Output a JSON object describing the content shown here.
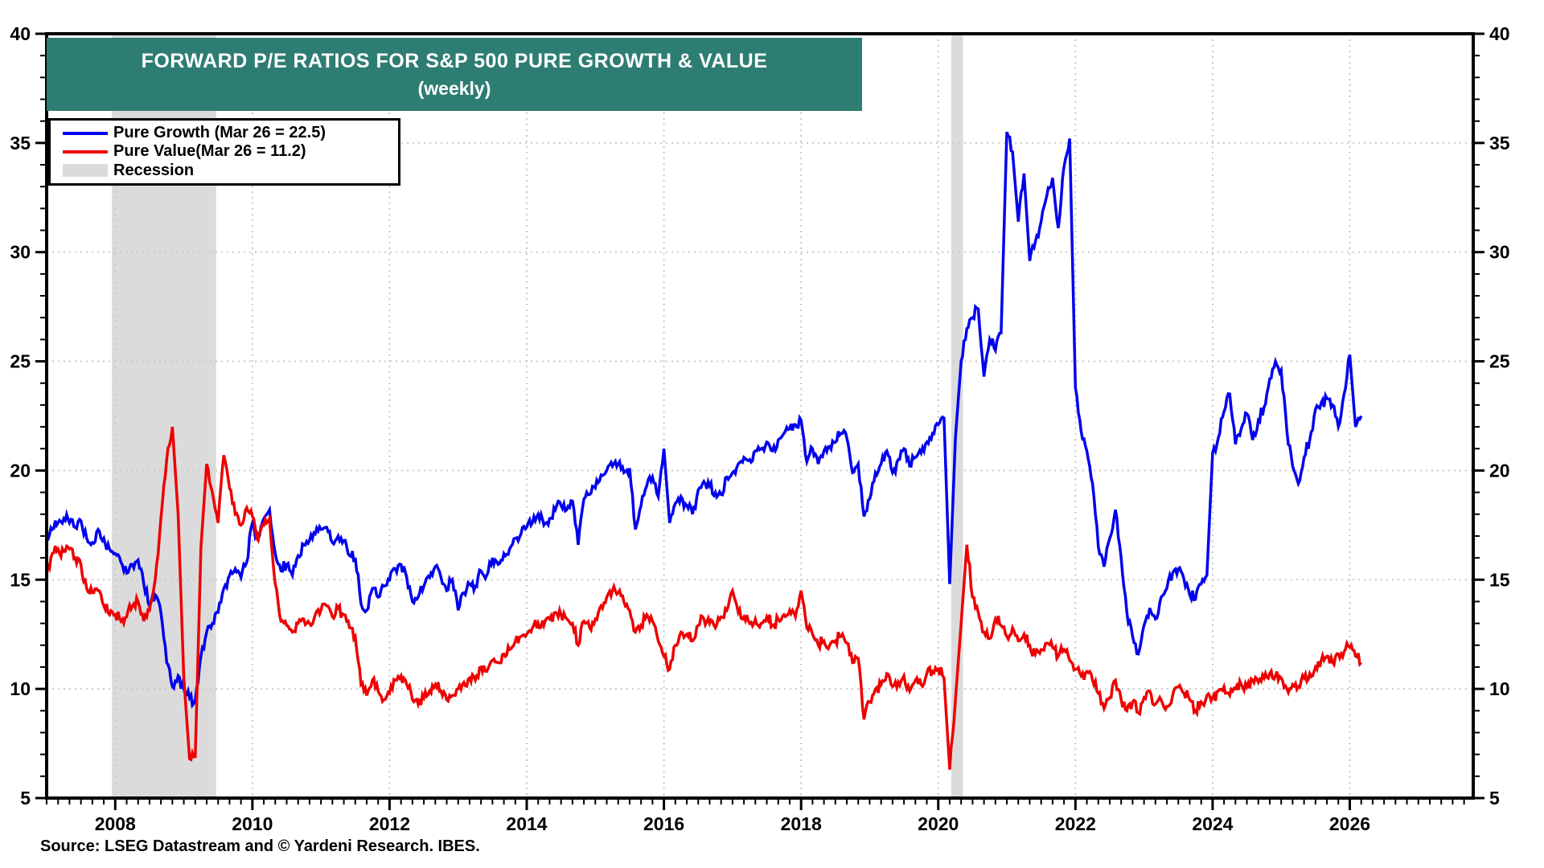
{
  "header": {
    "title": "FORWARD P/E RATIOS FOR S&P 500 PURE GROWTH & VALUE",
    "subtitle": "(weekly)"
  },
  "legend": {
    "items": [
      {
        "label": "Pure Growth (Mar 26 = 22.5)",
        "color": "#0000EE",
        "swatch": "line"
      },
      {
        "label": "Pure Value(Mar 26 = 11.2)",
        "color": "#EE0000",
        "swatch": "line"
      },
      {
        "label": "Recession",
        "color": "#DBDBDB",
        "swatch": "band"
      }
    ]
  },
  "footer": {
    "source_note": "Source: LSEG Datastream and © Yardeni Research. IBES."
  },
  "colors": {
    "title_bg": "#2E7D72",
    "title_text": "#FFFFFF",
    "growth_line": "#0000EE",
    "value_line": "#EE0000",
    "recession_band": "#DBDBDB",
    "gridline": "#C9C9C9",
    "axis": "#000000",
    "background": "#FFFFFF"
  },
  "chart_data": {
    "type": "line",
    "title": "FORWARD P/E RATIOS FOR S&P 500 PURE GROWTH & VALUE (weekly)",
    "legend_position": "top-left",
    "grid": "dotted",
    "xlim": [
      2007.0,
      2027.8
    ],
    "ylim": [
      5,
      40
    ],
    "y_ticks": [
      5,
      10,
      15,
      20,
      25,
      30,
      35,
      40
    ],
    "y_ticks_both_sides": true,
    "y_minor_step": 1,
    "x_ticks": [
      2008,
      2010,
      2012,
      2014,
      2016,
      2018,
      2020,
      2022,
      2024,
      2026
    ],
    "x_minor_step": 0.1667,
    "grid_y": [
      10,
      15,
      20,
      25,
      30,
      35
    ],
    "grid_x": [
      2008,
      2010,
      2012,
      2014,
      2016,
      2018,
      2020,
      2022,
      2024,
      2026
    ],
    "recession_bands": [
      [
        2007.95,
        2009.47
      ],
      [
        2020.19,
        2020.36
      ]
    ],
    "x_unit": "year",
    "x_start": 2007.0,
    "x_step": 0.0833333,
    "series": [
      {
        "name": "Pure Growth",
        "color": "#0000EE",
        "last_point_label": "Mar 26 = 22.5",
        "values": [
          16.8,
          17.3,
          17.6,
          17.8,
          17.6,
          17.4,
          17.7,
          16.9,
          16.7,
          17.3,
          16.9,
          16.4,
          16.2,
          15.8,
          15.3,
          15.7,
          15.9,
          14.8,
          13.8,
          14.3,
          13.5,
          11.2,
          10.1,
          10.6,
          10.0,
          9.6,
          9.5,
          11.5,
          12.6,
          13.0,
          13.5,
          14.6,
          15.2,
          15.5,
          15.1,
          15.8,
          17.6,
          16.9,
          17.8,
          18.2,
          16.2,
          15.4,
          15.7,
          15.2,
          16.1,
          16.6,
          16.8,
          17.1,
          17.3,
          17.4,
          16.7,
          17.0,
          16.8,
          16.1,
          16.0,
          13.9,
          13.6,
          14.6,
          14.2,
          14.7,
          15.0,
          15.5,
          15.7,
          15.1,
          14.0,
          14.2,
          14.7,
          15.1,
          15.6,
          15.1,
          14.5,
          15.0,
          13.6,
          14.4,
          14.8,
          14.7,
          15.4,
          15.2,
          16.0,
          15.7,
          16.2,
          16.4,
          16.9,
          17.1,
          17.4,
          17.6,
          18.0,
          17.5,
          17.8,
          18.2,
          18.4,
          18.2,
          18.6,
          16.6,
          18.7,
          18.9,
          19.2,
          19.8,
          20.0,
          20.2,
          20.3,
          19.9,
          20.1,
          17.3,
          18.4,
          19.3,
          19.7,
          18.8,
          21.0,
          17.6,
          18.5,
          18.8,
          18.4,
          18.0,
          19.1,
          19.5,
          19.3,
          19.0,
          18.9,
          19.7,
          19.9,
          20.3,
          20.6,
          20.5,
          20.9,
          21.0,
          21.3,
          20.9,
          21.4,
          21.7,
          21.9,
          22.1,
          22.3,
          20.4,
          21.0,
          20.3,
          20.9,
          21.1,
          21.3,
          21.7,
          21.5,
          19.9,
          20.3,
          17.9,
          18.7,
          19.9,
          20.3,
          20.9,
          19.9,
          20.5,
          21.0,
          20.2,
          20.6,
          20.8,
          21.3,
          21.7,
          22.1,
          22.4,
          14.8,
          21.5,
          25.0,
          26.5,
          27.0,
          27.4,
          24.3,
          26.0,
          25.5,
          26.3,
          35.5,
          34.6,
          31.4,
          33.6,
          29.6,
          30.5,
          31.4,
          32.6,
          33.4,
          31.1,
          33.9,
          35.2,
          23.8,
          21.8,
          20.9,
          19.4,
          16.5,
          15.6,
          16.9,
          18.2,
          16.0,
          13.5,
          12.4,
          11.6,
          12.9,
          13.7,
          13.2,
          14.2,
          14.6,
          15.3,
          15.5,
          15.0,
          14.3,
          14.1,
          14.8,
          15.2,
          20.8,
          21.5,
          22.7,
          23.5,
          21.2,
          21.9,
          22.6,
          21.4,
          22.3,
          22.9,
          24.2,
          25.0,
          24.6,
          21.8,
          20.2,
          19.4,
          20.6,
          21.4,
          22.8,
          23.1,
          23.3,
          23.0,
          22.0,
          23.5,
          25.3,
          22.0,
          22.5
        ]
      },
      {
        "name": "Pure Value",
        "color": "#EE0000",
        "last_point_label": "Mar 26 = 11.2",
        "values": [
          15.2,
          16.2,
          16.4,
          16.3,
          16.4,
          16.0,
          15.7,
          14.6,
          14.4,
          14.5,
          13.8,
          13.4,
          13.4,
          13.1,
          13.3,
          13.8,
          14.0,
          13.1,
          13.6,
          15.0,
          17.8,
          20.5,
          22.0,
          18.0,
          10.5,
          6.8,
          6.9,
          16.5,
          20.3,
          19.0,
          17.6,
          20.7,
          19.2,
          18.0,
          17.5,
          18.3,
          17.9,
          16.8,
          17.5,
          17.8,
          14.8,
          13.1,
          12.9,
          12.6,
          13.0,
          13.2,
          13.0,
          13.4,
          13.6,
          13.8,
          13.3,
          13.7,
          13.4,
          12.8,
          12.4,
          10.2,
          9.7,
          10.4,
          9.9,
          9.5,
          9.8,
          10.4,
          10.6,
          10.2,
          9.5,
          9.3,
          9.6,
          9.9,
          10.2,
          9.9,
          9.5,
          9.7,
          10.0,
          10.3,
          10.5,
          10.4,
          11.0,
          10.8,
          11.3,
          11.2,
          11.6,
          11.8,
          12.2,
          12.4,
          12.5,
          12.8,
          13.0,
          12.9,
          13.2,
          13.5,
          13.4,
          13.2,
          13.0,
          12.0,
          13.1,
          12.8,
          13.2,
          13.8,
          14.2,
          14.5,
          14.4,
          14.0,
          13.6,
          12.6,
          12.9,
          13.4,
          13.1,
          12.2,
          11.5,
          10.9,
          12.0,
          12.6,
          12.5,
          12.2,
          12.9,
          13.2,
          13.0,
          12.8,
          13.3,
          13.6,
          14.5,
          13.5,
          13.3,
          13.0,
          13.2,
          13.0,
          13.3,
          12.9,
          13.2,
          13.4,
          13.6,
          13.3,
          14.5,
          12.8,
          12.5,
          12.0,
          12.2,
          12.0,
          12.2,
          12.4,
          12.1,
          11.2,
          11.4,
          8.6,
          9.4,
          10.0,
          10.2,
          10.7,
          10.1,
          10.3,
          10.6,
          9.9,
          10.4,
          10.2,
          10.7,
          10.8,
          10.9,
          10.5,
          6.3,
          9.5,
          13.0,
          16.6,
          14.2,
          13.5,
          12.6,
          12.3,
          13.2,
          12.9,
          12.4,
          12.8,
          12.2,
          12.5,
          12.0,
          11.6,
          11.8,
          12.1,
          11.9,
          11.5,
          11.8,
          11.3,
          10.9,
          10.6,
          10.8,
          10.4,
          9.8,
          9.1,
          9.6,
          10.4,
          9.5,
          9.0,
          9.4,
          8.9,
          9.6,
          9.9,
          9.3,
          9.5,
          9.2,
          9.7,
          10.1,
          9.8,
          9.5,
          9.0,
          9.4,
          9.7,
          9.6,
          9.9,
          10.1,
          9.7,
          10.0,
          10.2,
          10.1,
          10.4,
          10.3,
          10.5,
          10.7,
          10.6,
          10.5,
          10.0,
          10.2,
          10.1,
          10.5,
          10.7,
          11.0,
          11.3,
          11.5,
          11.2,
          11.6,
          11.7,
          11.9,
          11.5,
          11.2
        ]
      }
    ]
  }
}
